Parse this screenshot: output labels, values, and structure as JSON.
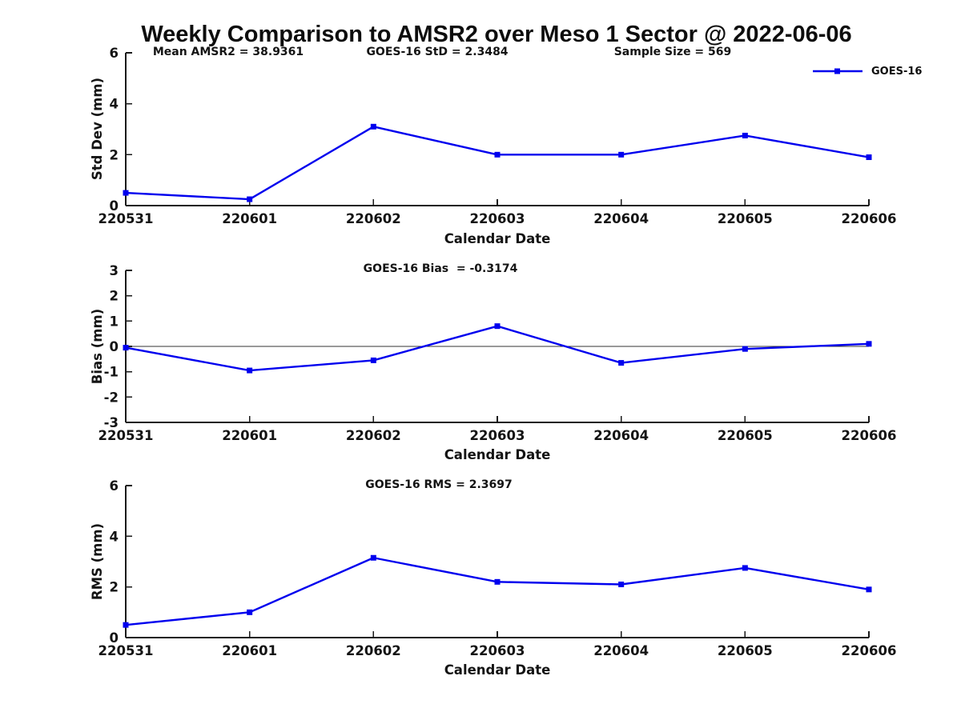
{
  "title": "Weekly Comparison to AMSR2 over Meso 1 Sector @ 2022-06-06",
  "legend": {
    "label": "GOES-16"
  },
  "colors": {
    "line": "#0000ee",
    "text": "#141414",
    "axis": "#1a1a1a",
    "zero_line": "#333333",
    "background": "#ffffff"
  },
  "chart_data": [
    {
      "type": "line",
      "name": "std-dev",
      "annotations": [
        "Mean AMSR2 = 38.9361",
        "GOES-16 StD = 2.3484",
        "Sample Size = 569"
      ],
      "ylabel": "Std Dev (mm)",
      "xlabel": "Calendar Date",
      "categories": [
        "220531",
        "220601",
        "220602",
        "220603",
        "220604",
        "220605",
        "220606"
      ],
      "series": [
        {
          "name": "GOES-16",
          "values": [
            0.5,
            0.25,
            3.1,
            2.0,
            2.0,
            2.75,
            1.9
          ]
        }
      ],
      "ylim": [
        0,
        6
      ],
      "yticks": [
        "0",
        "2",
        "4",
        "6"
      ],
      "zero_line": false,
      "legend_position": "top-right-outside",
      "grid": false
    },
    {
      "type": "line",
      "name": "bias",
      "annotations": [
        "GOES-16 Bias  = -0.3174"
      ],
      "ylabel": "Bias (mm)",
      "xlabel": "Calendar Date",
      "categories": [
        "220531",
        "220601",
        "220602",
        "220603",
        "220604",
        "220605",
        "220606"
      ],
      "series": [
        {
          "name": "GOES-16",
          "values": [
            -0.05,
            -0.95,
            -0.55,
            0.8,
            -0.65,
            -0.1,
            0.1
          ]
        }
      ],
      "ylim": [
        -3,
        3
      ],
      "yticks": [
        "-3",
        "-2",
        "-1",
        "0",
        "1",
        "2",
        "3"
      ],
      "zero_line": true,
      "legend_position": "none",
      "grid": false
    },
    {
      "type": "line",
      "name": "rms",
      "annotations": [
        "GOES-16 RMS = 2.3697"
      ],
      "ylabel": "RMS (mm)",
      "xlabel": "Calendar Date",
      "categories": [
        "220531",
        "220601",
        "220602",
        "220603",
        "220604",
        "220605",
        "220606"
      ],
      "series": [
        {
          "name": "GOES-16",
          "values": [
            0.5,
            1.0,
            3.15,
            2.2,
            2.1,
            2.75,
            1.9
          ]
        }
      ],
      "ylim": [
        0,
        6
      ],
      "yticks": [
        "0",
        "2",
        "4",
        "6"
      ],
      "zero_line": false,
      "legend_position": "none",
      "grid": false
    }
  ]
}
